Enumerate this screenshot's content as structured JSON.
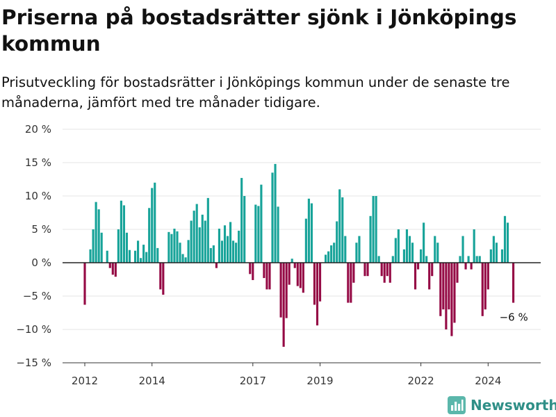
{
  "header": {
    "title": "Priserna på bostadsrätter sjönk i Jönköpings kommun",
    "subtitle": "Prisutveckling för bostadsrätter i Jönköpings kommun under de senaste tre månaderna, jämfört med tre månader tidigare."
  },
  "brand": {
    "name": "Newsworthy",
    "icon": "newsworthy-logo-icon"
  },
  "colors": {
    "positive": "#17a399",
    "negative": "#950a45",
    "grid": "#e6e6e6",
    "zero_line": "#222222"
  },
  "chart_data": {
    "type": "bar",
    "x_type": "date",
    "x_start": "2012-01",
    "x_step": "month",
    "x_ticks": [
      "2012",
      "2014",
      "2017",
      "2019",
      "2022",
      "2024"
    ],
    "y_ticks": [
      "20 %",
      "15 %",
      "10 %",
      "5 %",
      "0 %",
      "−5 %",
      "−10 %",
      "−15 %"
    ],
    "ylim": [
      -15,
      20
    ],
    "grid": true,
    "annotation": "−6 %",
    "values": [
      -6.3,
      0,
      2.0,
      5.0,
      9.1,
      8.0,
      4.5,
      0,
      1.8,
      -0.8,
      -1.8,
      -2.1,
      5.0,
      9.3,
      8.6,
      4.5,
      1.9,
      0,
      1.8,
      3.3,
      0.7,
      2.7,
      1.6,
      8.2,
      11.2,
      12.0,
      2.2,
      -4.0,
      -4.8,
      0,
      4.6,
      4.3,
      5.1,
      4.7,
      3.0,
      1.3,
      0.8,
      3.4,
      6.3,
      7.8,
      8.8,
      5.3,
      7.2,
      6.3,
      9.7,
      2.2,
      2.6,
      -0.8,
      5.1,
      3.3,
      5.6,
      4.0,
      6.1,
      3.3,
      3.0,
      4.8,
      12.7,
      10.0,
      0,
      -1.7,
      -2.6,
      8.7,
      8.5,
      11.7,
      -2.3,
      -4.0,
      -4.0,
      13.5,
      14.8,
      8.4,
      -8.2,
      -12.6,
      -8.3,
      -3.3,
      0.6,
      -0.8,
      -3.5,
      -3.8,
      -4.5,
      6.6,
      9.6,
      8.9,
      -6.3,
      -9.4,
      -5.8,
      0,
      1.2,
      1.7,
      2.6,
      3.0,
      6.2,
      11.0,
      9.8,
      4.0,
      -6.0,
      -6.0,
      -3.0,
      3.0,
      4.0,
      0,
      -2.0,
      -2.0,
      7.0,
      10.0,
      10.0,
      1.0,
      -2.0,
      -3.0,
      -2.0,
      -3.0,
      1.0,
      3.7,
      5.0,
      0,
      2.0,
      5.0,
      4.0,
      3.0,
      -4.0,
      -1.0,
      2.0,
      6.0,
      1.0,
      -4.0,
      -2.0,
      4.0,
      3.0,
      -8.0,
      -7.0,
      -10.0,
      -7.0,
      -11.0,
      -9.0,
      -3.0,
      1.0,
      4.0,
      -1.0,
      1.0,
      -1.0,
      5.0,
      1.0,
      1.0,
      -8.0,
      -7.0,
      -4.0,
      2.0,
      4.0,
      3.0,
      0,
      2.0,
      7.0,
      6.0,
      0,
      -6.0
    ]
  }
}
